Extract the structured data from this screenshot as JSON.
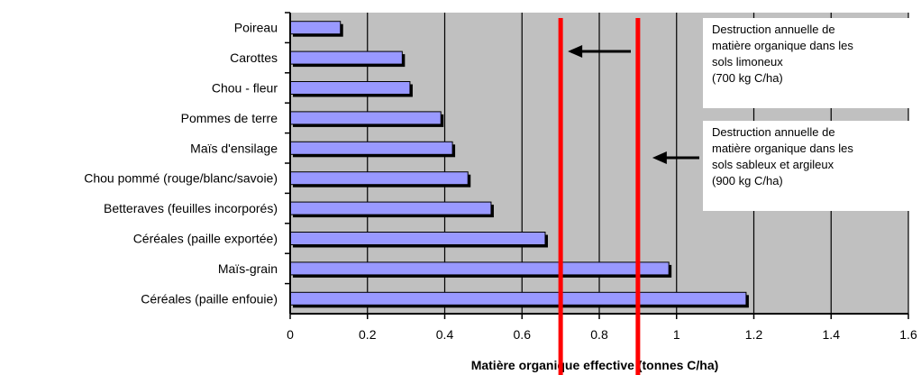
{
  "chart_data": {
    "type": "bar",
    "orientation": "horizontal",
    "categories": [
      "Poireau",
      "Carottes",
      "Chou - fleur",
      "Pommes de terre",
      "Maïs d'ensilage",
      "Chou pommé (rouge/blanc/savoie)",
      "Betteraves (feuilles incorporés)",
      "Céréales (paille exportée)",
      "Maïs-grain",
      "Céréales (paille enfouie)"
    ],
    "values": [
      0.13,
      0.29,
      0.31,
      0.39,
      0.42,
      0.46,
      0.52,
      0.66,
      0.98,
      1.18
    ],
    "xlabel": "Matière organique effective (tonnes C/ha)",
    "ylabel": "",
    "xlim": [
      0,
      1.6
    ],
    "xticks": [
      "0",
      "0.2",
      "0.4",
      "0.6",
      "0.8",
      "1",
      "1.2",
      "1.4",
      "1.6"
    ],
    "grid": "vertical",
    "bar_color": "#9999ff",
    "plot_background": "#c0c0c0",
    "reference_line_color": "#ff0000",
    "reference_lines": [
      0.7,
      0.9
    ],
    "annotations": [
      {
        "lines": [
          "Destruction annuelle de",
          "matière organique dans les",
          "sols limoneux",
          "(700 kg C/ha)"
        ],
        "arrow": "left"
      },
      {
        "lines": [
          "Destruction annuelle de",
          "matière organique dans les",
          "sols sableux et argileux",
          "(900 kg C/ha)"
        ],
        "arrow": "left"
      }
    ]
  }
}
